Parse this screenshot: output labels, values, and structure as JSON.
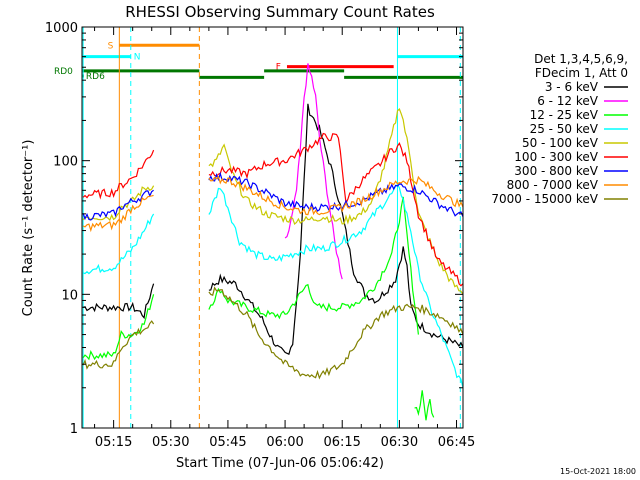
{
  "chart_data": {
    "type": "line",
    "title": "RHESSI Observing Summary Count Rates",
    "xlabel": "Start Time (07-Jun-06 05:06:42)",
    "ylabel": "Count Rate (s⁻¹ detector⁻¹)",
    "yscale": "log",
    "ylim": [
      1,
      1000
    ],
    "xlim_minutes_after_05_00": [
      6.7,
      106.7
    ],
    "y_ticks": [
      {
        "v": 1,
        "label": "1"
      },
      {
        "v": 10,
        "label": "10"
      },
      {
        "v": 100,
        "label": "100"
      },
      {
        "v": 1000,
        "label": "1000"
      }
    ],
    "x_ticks": [
      {
        "t": 15,
        "label": "05:15"
      },
      {
        "t": 30,
        "label": "05:30"
      },
      {
        "t": 45,
        "label": "05:45"
      },
      {
        "t": 60,
        "label": "06:00"
      },
      {
        "t": 75,
        "label": "06:15"
      },
      {
        "t": 90,
        "label": "06:30"
      },
      {
        "t": 105,
        "label": "06:45"
      }
    ],
    "legend_header": [
      "Det 1,3,4,5,6,9,",
      "FDecim 1, Att 0"
    ],
    "footer_date": "15-Oct-2021 18:00",
    "flag_bars": [
      {
        "label": "S",
        "color": "#ff8c00",
        "start": 16.5,
        "end": 37.5,
        "y": 730
      },
      {
        "label": "N",
        "color": "#00ffff",
        "start": 6.7,
        "end": 19.5,
        "y": 600
      },
      {
        "label": "F",
        "color": "#ff0000",
        "start": 60.5,
        "end": 88.5,
        "y": 505
      },
      {
        "label": "",
        "color": "#00ffff",
        "start": 89.5,
        "end": 106.7,
        "y": 600
      },
      {
        "label": "RD0",
        "color": "#007700",
        "start": 6.7,
        "end": 37.5,
        "y": 470
      },
      {
        "label": "",
        "color": "#007700",
        "start": 37.5,
        "end": 54.5,
        "y": 420
      },
      {
        "label": "",
        "color": "#007700",
        "start": 54.5,
        "end": 75.5,
        "y": 470
      },
      {
        "label": "",
        "color": "#007700",
        "start": 75.5,
        "end": 106.7,
        "y": 420
      },
      {
        "label": "RD6",
        "color": "#007700",
        "start": 6.7,
        "end": 7.2,
        "y": 430
      }
    ],
    "vlines": [
      {
        "t": 7.0,
        "color": "#00ffff",
        "dash": false
      },
      {
        "t": 16.5,
        "color": "#ff8c00",
        "dash": false
      },
      {
        "t": 19.5,
        "color": "#00ffff",
        "dash": true
      },
      {
        "t": 37.5,
        "color": "#ff8c00",
        "dash": true
      },
      {
        "t": 89.5,
        "color": "#00ffff",
        "dash": false
      },
      {
        "t": 106.0,
        "color": "#00ffff",
        "dash": true
      }
    ],
    "series": [
      {
        "name": "3 - 6 keV",
        "color": "#000000",
        "segments": [
          {
            "t": [
              7,
              20,
              23,
              25.5
            ],
            "y": [
              8,
              8,
              7,
              12
            ]
          },
          {
            "t": [
              40,
              43,
              47,
              51,
              54,
              56,
              58,
              60,
              61,
              62,
              63,
              64,
              66,
              69,
              72,
              75,
              78,
              81,
              84,
              87,
              89,
              91,
              92,
              93,
              95,
              99,
              103,
              106.7
            ],
            "y": [
              11,
              13,
              12,
              8.5,
              6.5,
              5,
              4,
              3.5,
              3.5,
              4.5,
              9,
              20,
              250,
              170,
              90,
              40,
              15,
              10,
              9,
              11,
              13,
              22,
              16,
              8,
              6,
              5,
              4.5,
              4
            ]
          }
        ]
      },
      {
        "name": "6 - 12 keV",
        "color": "#ff00ff",
        "segments": [
          {
            "t": [
              60,
              61,
              62,
              63,
              64,
              65,
              66,
              67,
              68,
              69,
              71,
              73,
              75
            ],
            "y": [
              25,
              30,
              40,
              60,
              120,
              300,
              500,
              420,
              300,
              150,
              60,
              25,
              13
            ]
          }
        ]
      },
      {
        "name": "12 - 25 keV",
        "color": "#00ff00",
        "segments": [
          {
            "t": [
              7,
              15,
              17,
              20,
              23,
              25.5
            ],
            "y": [
              3.5,
              3.5,
              5,
              5,
              6,
              10
            ]
          },
          {
            "t": [
              40,
              43,
              45,
              50,
              56,
              60,
              64,
              66,
              68,
              75,
              80,
              84,
              88,
              91,
              93,
              95
            ],
            "y": [
              8,
              11,
              9,
              8,
              7,
              7,
              10,
              12,
              8,
              8,
              9,
              12,
              20,
              50,
              15,
              5
            ]
          },
          {
            "t": [
              94,
              95,
              96,
              97,
              98,
              99
            ],
            "y": [
              1.5,
              1.3,
              1.8,
              1.2,
              1.6,
              1.2
            ]
          }
        ]
      },
      {
        "name": "25 - 50 keV",
        "color": "#00ffff",
        "segments": [
          {
            "t": [
              7,
              15,
              17,
              20,
              23,
              25.5
            ],
            "y": [
              15,
              16,
              18,
              22,
              30,
              40
            ]
          },
          {
            "t": [
              40,
              43,
              45,
              48,
              52,
              57,
              62,
              66,
              70,
              75,
              80,
              85,
              90,
              93,
              95,
              98,
              101,
              104,
              106.7
            ],
            "y": [
              40,
              65,
              45,
              25,
              20,
              18,
              20,
              22,
              22,
              25,
              30,
              45,
              65,
              30,
              15,
              8,
              5,
              3,
              2
            ]
          }
        ]
      },
      {
        "name": "50 - 100 keV",
        "color": "#c8c800",
        "segments": [
          {
            "t": [
              7,
              15,
              17,
              20,
              23,
              25.5
            ],
            "y": [
              38,
              38,
              45,
              50,
              62,
              65
            ]
          },
          {
            "t": [
              40,
              42,
              44,
              45,
              47,
              50,
              55,
              58,
              62,
              66,
              70,
              75,
              80,
              83,
              86,
              89,
              90,
              91,
              93,
              95,
              100,
              104,
              106.7
            ],
            "y": [
              90,
              100,
              130,
              100,
              70,
              50,
              40,
              38,
              36,
              36,
              38,
              35,
              40,
              50,
              90,
              200,
              260,
              200,
              100,
              40,
              18,
              12,
              10
            ]
          }
        ]
      },
      {
        "name": "100 - 300 keV",
        "color": "#ff0000",
        "segments": [
          {
            "t": [
              7,
              15,
              17,
              20,
              23,
              25.5
            ],
            "y": [
              55,
              58,
              65,
              75,
              95,
              120
            ]
          },
          {
            "t": [
              40,
              45,
              50,
              55,
              60,
              65,
              70,
              74,
              76,
              80,
              85,
              88,
              90,
              92,
              95,
              100,
              106.7
            ],
            "y": [
              80,
              85,
              80,
              95,
              100,
              120,
              150,
              150,
              50,
              70,
              95,
              120,
              130,
              100,
              40,
              18,
              12
            ]
          }
        ]
      },
      {
        "name": "300 - 800 keV",
        "color": "#0000ff",
        "segments": [
          {
            "t": [
              7,
              15,
              17,
              20,
              23,
              25.5
            ],
            "y": [
              38,
              40,
              45,
              50,
              55,
              60
            ]
          },
          {
            "t": [
              40,
              45,
              50,
              55,
              60,
              65,
              70,
              75,
              80,
              85,
              90,
              95,
              100,
              106.7
            ],
            "y": [
              75,
              75,
              68,
              58,
              48,
              45,
              45,
              46,
              50,
              58,
              65,
              60,
              48,
              38
            ]
          }
        ]
      },
      {
        "name": "800 - 7000 keV",
        "color": "#ff8c00",
        "segments": [
          {
            "t": [
              7,
              15,
              17,
              20,
              23,
              25.5
            ],
            "y": [
              32,
              33,
              36,
              45,
              50,
              55
            ]
          },
          {
            "t": [
              40,
              45,
              50,
              55,
              60,
              65,
              70,
              75,
              80,
              85,
              90,
              95,
              100,
              106.7
            ],
            "y": [
              70,
              72,
              62,
              52,
              45,
              42,
              42,
              45,
              50,
              60,
              70,
              72,
              58,
              45
            ]
          }
        ]
      },
      {
        "name": "7000 - 15000 keV",
        "color": "#808000",
        "segments": [
          {
            "t": [
              7,
              15,
              17,
              20,
              23,
              25.5
            ],
            "y": [
              3,
              3,
              4,
              5,
              5.5,
              6
            ]
          },
          {
            "t": [
              40,
              43,
              46,
              50,
              53,
              56,
              60,
              65,
              70,
              75,
              80,
              85,
              90,
              95,
              100,
              104,
              106.7
            ],
            "y": [
              10,
              11,
              9,
              7,
              5,
              4,
              3,
              2.5,
              2.5,
              3,
              5,
              7,
              8,
              8,
              7,
              6,
              5
            ]
          }
        ]
      }
    ]
  }
}
